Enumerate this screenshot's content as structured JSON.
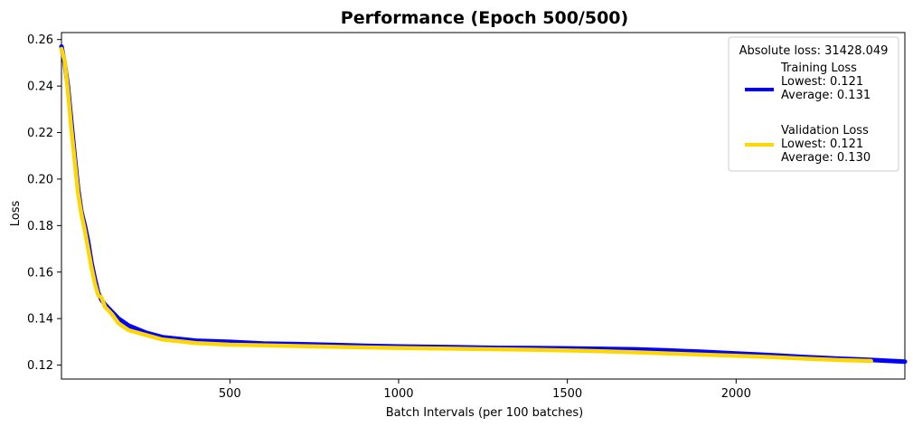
{
  "chart_data": {
    "type": "line",
    "title": "Performance (Epoch 500/500)",
    "xlabel": "Batch Intervals (per 100 batches)",
    "ylabel": "Loss",
    "xlim": [
      1,
      2500
    ],
    "ylim": [
      0.114,
      0.263
    ],
    "x_ticks": [
      500,
      1000,
      1500,
      2000
    ],
    "y_ticks": [
      0.12,
      0.14,
      0.16,
      0.18,
      0.2,
      0.22,
      0.24,
      0.26
    ],
    "x_tick_labels": [
      "500",
      "1000",
      "1500",
      "2000"
    ],
    "y_tick_labels": [
      "0.12",
      "0.14",
      "0.16",
      "0.18",
      "0.20",
      "0.22",
      "0.24",
      "0.26"
    ],
    "grid": false,
    "legend": {
      "placement": "top-right",
      "title": "Absolute loss: 31428.049",
      "entries": [
        {
          "line1": "Training Loss",
          "line2": "Lowest: 0.121",
          "line3": "Average: 0.131"
        },
        {
          "line1": "Validation Loss",
          "line2": "Lowest: 0.121",
          "line3": "Average: 0.130"
        }
      ]
    },
    "series": [
      {
        "color": "#0000ff",
        "x": [
          1,
          10,
          20,
          30,
          40,
          50,
          60,
          70,
          80,
          90,
          100,
          110,
          120,
          130,
          150,
          170,
          200,
          250,
          300,
          400,
          500,
          600,
          700,
          800,
          900,
          1000,
          1100,
          1200,
          1300,
          1400,
          1500,
          1600,
          1700,
          1800,
          1900,
          2000,
          2100,
          2200,
          2300,
          2400,
          2500
        ],
        "y": [
          0.257,
          0.25,
          0.24,
          0.225,
          0.21,
          0.196,
          0.186,
          0.18,
          0.173,
          0.164,
          0.157,
          0.151,
          0.148,
          0.146,
          0.143,
          0.14,
          0.137,
          0.134,
          0.132,
          0.1305,
          0.13,
          0.1293,
          0.129,
          0.1287,
          0.1283,
          0.128,
          0.1278,
          0.1276,
          0.1274,
          0.1273,
          0.1272,
          0.127,
          0.1268,
          0.1263,
          0.1257,
          0.125,
          0.1243,
          0.1235,
          0.1228,
          0.1222,
          0.1215
        ]
      },
      {
        "color": "#ffd700",
        "x": [
          1,
          10,
          20,
          30,
          40,
          50,
          60,
          70,
          80,
          90,
          100,
          110,
          120,
          130,
          150,
          170,
          200,
          250,
          300,
          400,
          500,
          600,
          700,
          800,
          900,
          1000,
          1100,
          1200,
          1300,
          1400,
          1500,
          1600,
          1700,
          1800,
          1900,
          2000,
          2100,
          2200,
          2300,
          2400
        ],
        "y": [
          0.256,
          0.251,
          0.238,
          0.222,
          0.208,
          0.194,
          0.185,
          0.178,
          0.17,
          0.162,
          0.155,
          0.15,
          0.149,
          0.145,
          0.142,
          0.138,
          0.135,
          0.133,
          0.131,
          0.1295,
          0.1288,
          0.1285,
          0.1282,
          0.1279,
          0.1276,
          0.1274,
          0.1272,
          0.127,
          0.1268,
          0.1266,
          0.1263,
          0.126,
          0.1255,
          0.125,
          0.1245,
          0.124,
          0.1235,
          0.1228,
          0.1222,
          0.1218
        ]
      }
    ]
  }
}
